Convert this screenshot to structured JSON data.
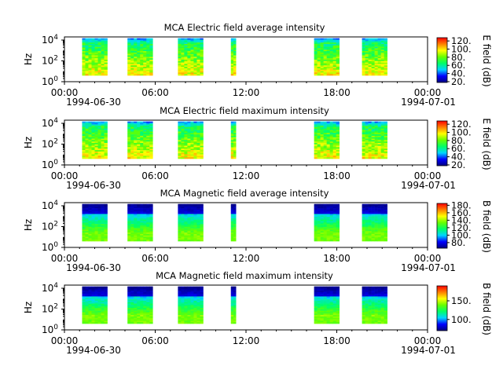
{
  "chart_data": [
    {
      "type": "heatmap",
      "title": "MCA  Electric field average intensity",
      "ylabel": "Hz",
      "colorbar_label": "E field (dB)",
      "colorbar_ticks": [
        "20.",
        "40.",
        "60.",
        "80.",
        "100.",
        "120."
      ],
      "color_range": [
        18,
        128
      ],
      "y_scale": "log",
      "y_tick_labels": [
        "10^0",
        "10^2",
        "10^4"
      ],
      "x_tick_labels": [
        "00:00",
        "06:00",
        "12:00",
        "18:00",
        "00:00"
      ],
      "x_date_labels": [
        "1994-06-30",
        "1994-07-01"
      ],
      "xlim": [
        "1994-06-30T00:00",
        "1994-07-01T00:00"
      ],
      "ylim_hz": [
        1,
        20000
      ],
      "data_intervals_utc": [
        [
          "01:10",
          "02:50"
        ],
        [
          "04:10",
          "05:50"
        ],
        [
          "07:30",
          "09:10"
        ],
        [
          "11:00",
          "11:20"
        ],
        [
          "16:30",
          "18:10"
        ],
        [
          "19:40",
          "21:20"
        ]
      ],
      "spectrum_shape": "electric"
    },
    {
      "type": "heatmap",
      "title": "MCA  Electric field maximum intensity",
      "ylabel": "Hz",
      "colorbar_label": "E field (dB)",
      "colorbar_ticks": [
        "20.",
        "40.",
        "60.",
        "80.",
        "100.",
        "120."
      ],
      "color_range": [
        18,
        128
      ],
      "y_scale": "log",
      "y_tick_labels": [
        "10^0",
        "10^2",
        "10^4"
      ],
      "x_tick_labels": [
        "00:00",
        "06:00",
        "12:00",
        "18:00",
        "00:00"
      ],
      "x_date_labels": [
        "1994-06-30",
        "1994-07-01"
      ],
      "xlim": [
        "1994-06-30T00:00",
        "1994-07-01T00:00"
      ],
      "ylim_hz": [
        1,
        20000
      ],
      "data_intervals_utc": [
        [
          "01:10",
          "02:50"
        ],
        [
          "04:10",
          "05:50"
        ],
        [
          "07:30",
          "09:10"
        ],
        [
          "11:00",
          "11:20"
        ],
        [
          "16:30",
          "18:10"
        ],
        [
          "19:40",
          "21:20"
        ]
      ],
      "spectrum_shape": "electric"
    },
    {
      "type": "heatmap",
      "title": "MCA  Magnetic field average intensity",
      "ylabel": "Hz",
      "colorbar_label": "B field (dB)",
      "colorbar_ticks": [
        "80.",
        "100.",
        "120.",
        "140.",
        "160.",
        "180."
      ],
      "color_range": [
        65,
        185
      ],
      "y_scale": "log",
      "y_tick_labels": [
        "10^0",
        "10^2",
        "10^4"
      ],
      "x_tick_labels": [
        "00:00",
        "06:00",
        "12:00",
        "18:00",
        "00:00"
      ],
      "x_date_labels": [
        "1994-06-30",
        "1994-07-01"
      ],
      "xlim": [
        "1994-06-30T00:00",
        "1994-07-01T00:00"
      ],
      "ylim_hz": [
        1,
        20000
      ],
      "data_intervals_utc": [
        [
          "01:10",
          "02:50"
        ],
        [
          "04:10",
          "05:50"
        ],
        [
          "07:30",
          "09:10"
        ],
        [
          "11:00",
          "11:20"
        ],
        [
          "16:30",
          "18:10"
        ],
        [
          "19:40",
          "21:20"
        ]
      ],
      "spectrum_shape": "magnetic"
    },
    {
      "type": "heatmap",
      "title": "MCA  Magnetic field maximum intensity",
      "ylabel": "Hz",
      "colorbar_label": "B field (dB)",
      "colorbar_ticks": [
        "100.",
        "150."
      ],
      "color_range": [
        70,
        190
      ],
      "y_scale": "log",
      "y_tick_labels": [
        "10^0",
        "10^2",
        "10^4"
      ],
      "x_tick_labels": [
        "00:00",
        "06:00",
        "12:00",
        "18:00",
        "00:00"
      ],
      "x_date_labels": [
        "1994-06-30",
        "1994-07-01"
      ],
      "xlim": [
        "1994-06-30T00:00",
        "1994-07-01T00:00"
      ],
      "ylim_hz": [
        1,
        20000
      ],
      "data_intervals_utc": [
        [
          "01:10",
          "02:50"
        ],
        [
          "04:10",
          "05:50"
        ],
        [
          "07:30",
          "09:10"
        ],
        [
          "11:00",
          "11:20"
        ],
        [
          "16:30",
          "18:10"
        ],
        [
          "19:40",
          "21:20"
        ]
      ],
      "spectrum_shape": "magnetic"
    }
  ],
  "colors": {
    "colormap": [
      "#00007f",
      "#0000ff",
      "#00d4ff",
      "#00ff66",
      "#66ff00",
      "#ffff00",
      "#ff8000",
      "#ff0000"
    ],
    "axes": "#000000",
    "background": "#ffffff"
  }
}
